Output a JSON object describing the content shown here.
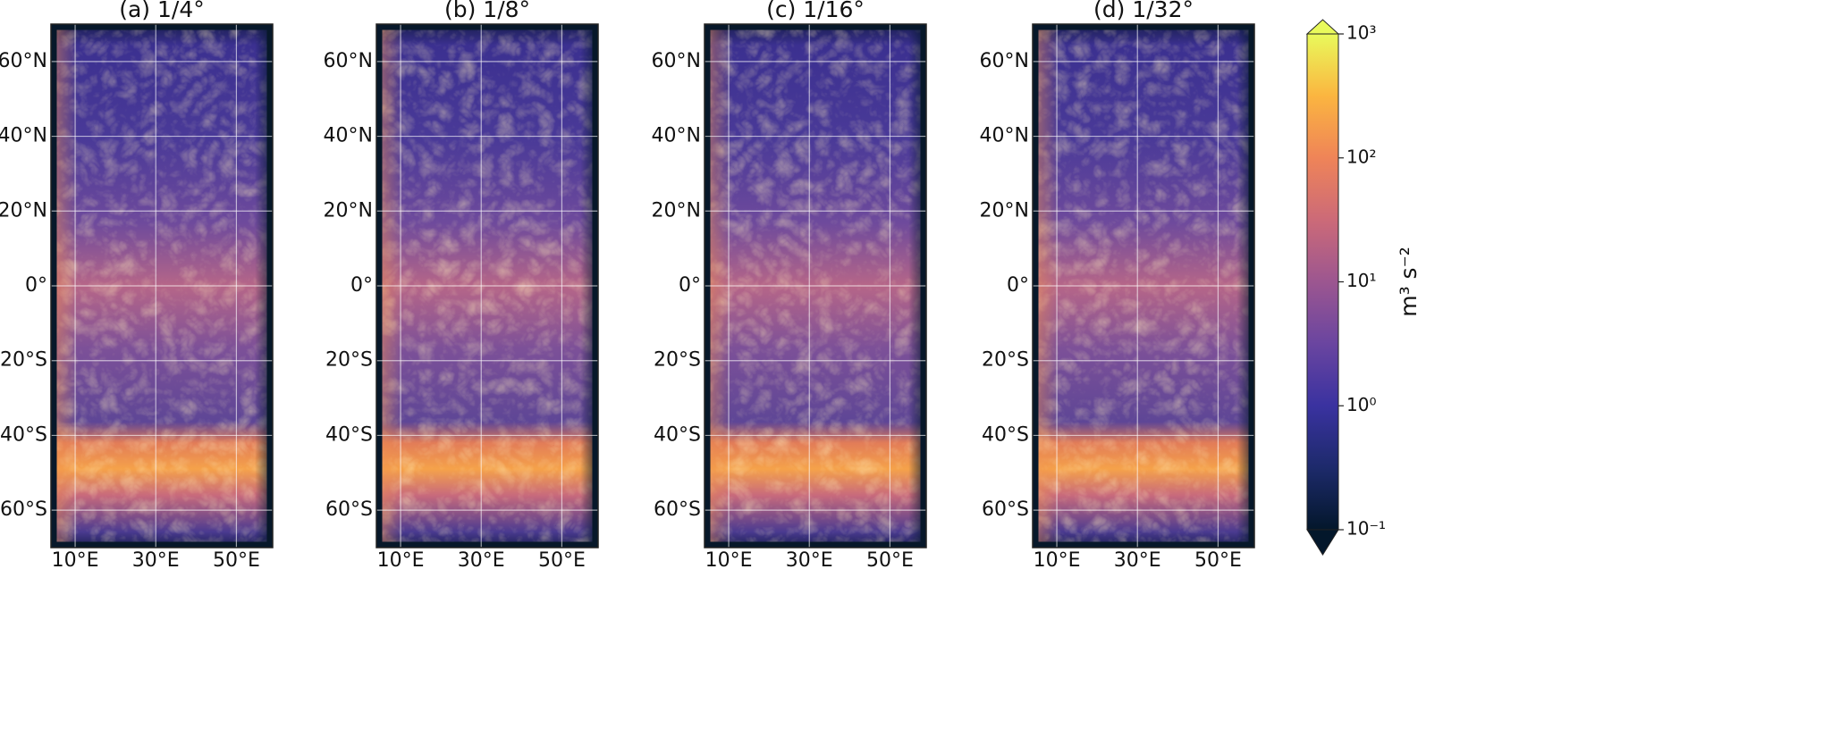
{
  "chart_data": [
    {
      "type": "map",
      "title": "(a) 1/4°",
      "xlim": [
        4,
        59
      ],
      "ylim": [
        -70,
        70
      ],
      "grid": true,
      "xticks": [
        {
          "value": 10,
          "label": "10°E"
        },
        {
          "value": 30,
          "label": "30°E"
        },
        {
          "value": 50,
          "label": "50°E"
        }
      ],
      "yticks": [
        {
          "value": 60,
          "label": "60°N"
        },
        {
          "value": 40,
          "label": "40°N"
        },
        {
          "value": 20,
          "label": "20°N"
        },
        {
          "value": 0,
          "label": "0°"
        },
        {
          "value": -20,
          "label": "20°S"
        },
        {
          "value": -40,
          "label": "40°S"
        },
        {
          "value": -60,
          "label": "60°S"
        }
      ]
    },
    {
      "type": "map",
      "title": "(b) 1/8°",
      "xlim": [
        4,
        59
      ],
      "ylim": [
        -70,
        70
      ],
      "grid": true,
      "xticks": [
        {
          "value": 10,
          "label": "10°E"
        },
        {
          "value": 30,
          "label": "30°E"
        },
        {
          "value": 50,
          "label": "50°E"
        }
      ],
      "yticks": [
        {
          "value": 60,
          "label": "60°N"
        },
        {
          "value": 40,
          "label": "40°N"
        },
        {
          "value": 20,
          "label": "20°N"
        },
        {
          "value": 0,
          "label": "0°"
        },
        {
          "value": -20,
          "label": "20°S"
        },
        {
          "value": -40,
          "label": "40°S"
        },
        {
          "value": -60,
          "label": "60°S"
        }
      ]
    },
    {
      "type": "map",
      "title": "(c) 1/16°",
      "xlim": [
        4,
        59
      ],
      "ylim": [
        -70,
        70
      ],
      "grid": true,
      "xticks": [
        {
          "value": 10,
          "label": "10°E"
        },
        {
          "value": 30,
          "label": "30°E"
        },
        {
          "value": 50,
          "label": "50°E"
        }
      ],
      "yticks": [
        {
          "value": 60,
          "label": "60°N"
        },
        {
          "value": 40,
          "label": "40°N"
        },
        {
          "value": 20,
          "label": "20°N"
        },
        {
          "value": 0,
          "label": "0°"
        },
        {
          "value": -20,
          "label": "20°S"
        },
        {
          "value": -40,
          "label": "40°S"
        },
        {
          "value": -60,
          "label": "60°S"
        }
      ]
    },
    {
      "type": "map",
      "title": "(d) 1/32°",
      "xlim": [
        4,
        59
      ],
      "ylim": [
        -70,
        70
      ],
      "grid": true,
      "xticks": [
        {
          "value": 10,
          "label": "10°E"
        },
        {
          "value": 30,
          "label": "30°E"
        },
        {
          "value": 50,
          "label": "50°E"
        }
      ],
      "yticks": [
        {
          "value": 60,
          "label": "60°N"
        },
        {
          "value": 40,
          "label": "40°N"
        },
        {
          "value": 20,
          "label": "20°N"
        },
        {
          "value": 0,
          "label": "0°"
        },
        {
          "value": -20,
          "label": "20°S"
        },
        {
          "value": -40,
          "label": "40°S"
        },
        {
          "value": -60,
          "label": "60°S"
        }
      ]
    },
    {
      "type": "colorbar",
      "label": "m³ s⁻²",
      "log": true,
      "clim": [
        0.1,
        1000
      ],
      "colormap": [
        "#03172b",
        "#1d2a6b",
        "#3a32a0",
        "#6a45a0",
        "#9c5690",
        "#cc6a78",
        "#ef8458",
        "#fbb540",
        "#e9fa5b"
      ],
      "ticks": [
        {
          "value": 1000,
          "label": "10³"
        },
        {
          "value": 100,
          "label": "10²"
        },
        {
          "value": 10,
          "label": "10¹"
        },
        {
          "value": 1,
          "label": "10⁰"
        },
        {
          "value": 0.1,
          "label": "10⁻¹"
        }
      ]
    }
  ]
}
